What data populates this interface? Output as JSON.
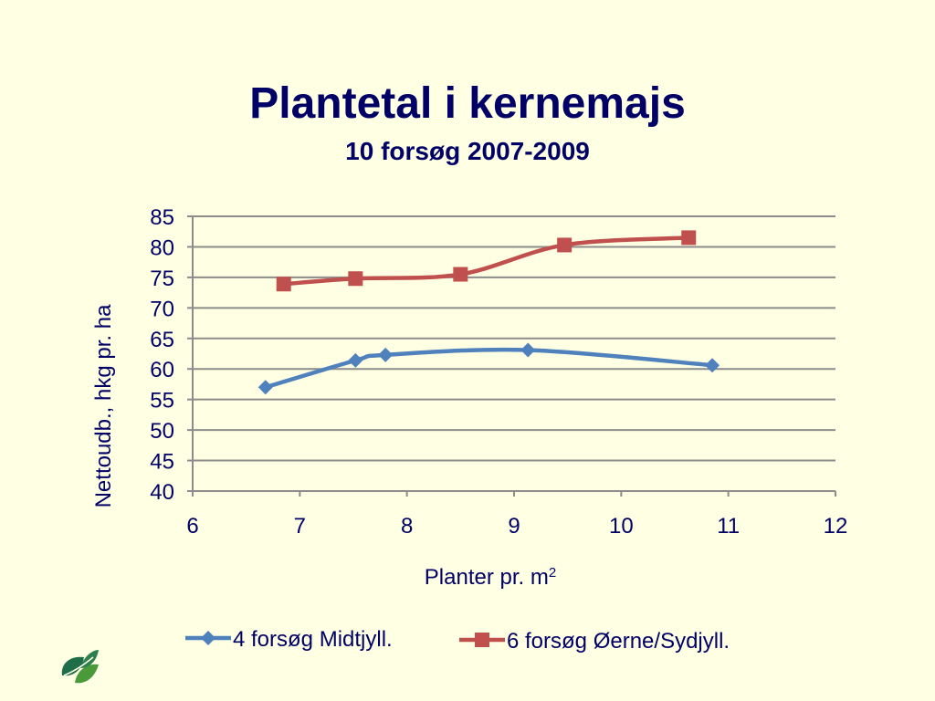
{
  "slide": {
    "title": "Plantetal i kernemajs",
    "subtitle": "10 forsøg 2007-2009",
    "logo_icon": "leaf-logo-icon"
  },
  "chart_data": {
    "type": "line",
    "title": "",
    "xlabel": "Planter pr. m",
    "xlabel_superscript": "2",
    "ylabel": "Nettoudb., hkg pr. ha",
    "xlim": [
      6,
      12
    ],
    "ylim": [
      40,
      85
    ],
    "xticks": [
      "6",
      "7",
      "8",
      "9",
      "10",
      "11",
      "12"
    ],
    "yticks": [
      "40",
      "45",
      "50",
      "55",
      "60",
      "65",
      "70",
      "75",
      "80",
      "85"
    ],
    "grid": "horizontal",
    "legend_position": "bottom",
    "series": [
      {
        "name": "4 forsøg Midtjyll.",
        "color": "#4f81bd",
        "marker": "diamond",
        "x": [
          6.68,
          7.52,
          7.8,
          9.13,
          10.85
        ],
        "y": [
          57.0,
          61.4,
          62.3,
          63.1,
          60.6
        ]
      },
      {
        "name": "6 forsøg Øerne/Sydjyll.",
        "color": "#c0504d",
        "marker": "square",
        "x": [
          6.85,
          7.52,
          8.5,
          9.47,
          10.63
        ],
        "y": [
          73.9,
          74.8,
          75.5,
          80.3,
          81.5
        ]
      }
    ]
  }
}
